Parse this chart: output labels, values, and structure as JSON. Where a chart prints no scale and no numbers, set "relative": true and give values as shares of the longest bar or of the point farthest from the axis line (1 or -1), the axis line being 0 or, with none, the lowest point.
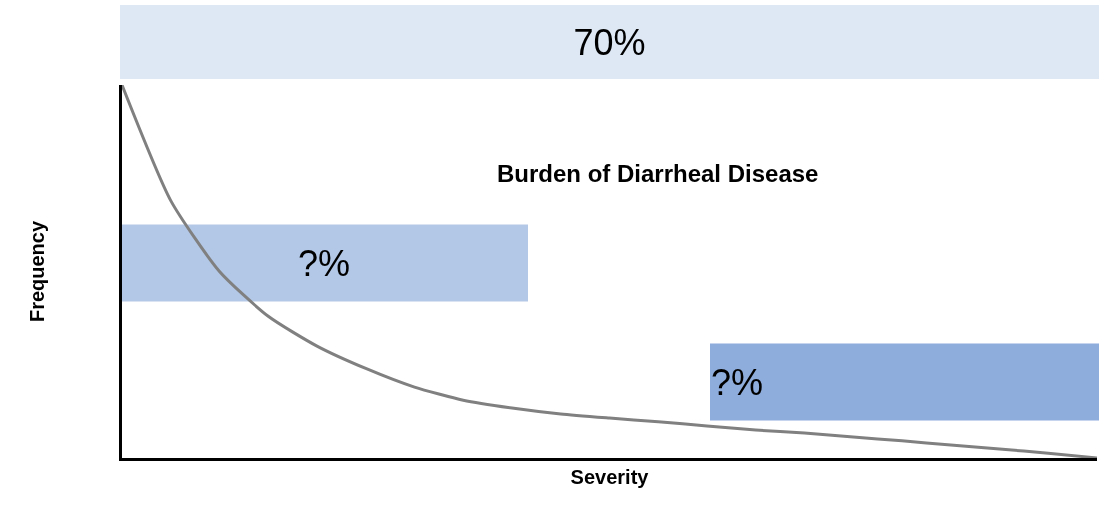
{
  "chart_data": {
    "type": "line",
    "title": "Burden of Diarrheal Disease",
    "xlabel": "Severity",
    "ylabel": "Frequency",
    "relative": true,
    "categories": [
      null,
      null,
      null,
      null,
      null,
      null,
      null,
      null,
      null,
      null,
      null,
      null,
      null,
      null,
      null,
      null,
      null,
      null,
      null,
      null,
      null
    ],
    "series": [
      {
        "color": "#808080",
        "values": [
          1.0,
          0.69,
          0.5,
          0.38,
          0.3,
          0.24,
          0.19,
          0.155,
          0.134,
          0.118,
          0.107,
          0.097,
          0.086,
          0.075,
          0.067,
          0.056,
          0.046,
          0.035,
          0.024,
          0.013,
          0.0
        ]
      }
    ],
    "annotations": [
      "70%",
      "?%",
      "?%"
    ],
    "marker": "none",
    "line_style": "solid"
  }
}
